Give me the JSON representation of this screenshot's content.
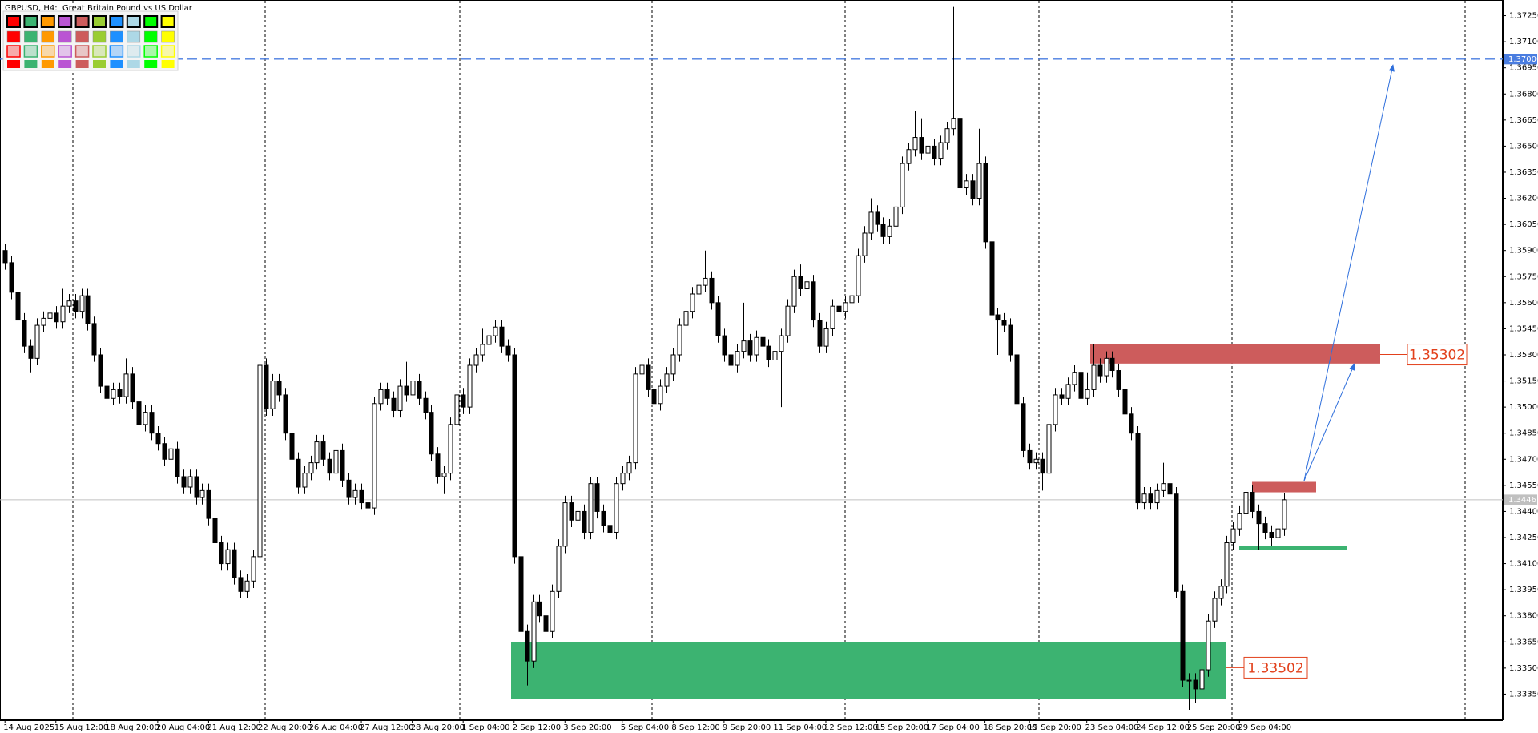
{
  "chart_data": {
    "type": "candlestick",
    "title": "GBPUSD, H4:  Great Britain Pound vs US Dollar",
    "up_color": "#ffffff",
    "down_color": "#000000",
    "ylim": [
      1.332,
      1.3734
    ],
    "yticks": [
      {
        "value": 1.3725,
        "label": "1.37250"
      },
      {
        "value": 1.371,
        "label": "1.37100"
      },
      {
        "value": 1.3695,
        "label": "1.36950"
      },
      {
        "value": 1.368,
        "label": "1.36800"
      },
      {
        "value": 1.3665,
        "label": "1.36650"
      },
      {
        "value": 1.365,
        "label": "1.36500"
      },
      {
        "value": 1.3635,
        "label": "1.36350"
      },
      {
        "value": 1.362,
        "label": "1.36200"
      },
      {
        "value": 1.3605,
        "label": "1.36050"
      },
      {
        "value": 1.359,
        "label": "1.35900"
      },
      {
        "value": 1.3575,
        "label": "1.35750"
      },
      {
        "value": 1.356,
        "label": "1.35600"
      },
      {
        "value": 1.3545,
        "label": "1.35450"
      },
      {
        "value": 1.353,
        "label": "1.35300"
      },
      {
        "value": 1.3515,
        "label": "1.35150"
      },
      {
        "value": 1.35,
        "label": "1.35000"
      },
      {
        "value": 1.3485,
        "label": "1.34850"
      },
      {
        "value": 1.347,
        "label": "1.34700"
      },
      {
        "value": 1.3455,
        "label": "1.34550"
      },
      {
        "value": 1.344,
        "label": "1.34400"
      },
      {
        "value": 1.3425,
        "label": "1.34250"
      },
      {
        "value": 1.341,
        "label": "1.34100"
      },
      {
        "value": 1.3395,
        "label": "1.33950"
      },
      {
        "value": 1.338,
        "label": "1.33800"
      },
      {
        "value": 1.3365,
        "label": "1.33650"
      },
      {
        "value": 1.335,
        "label": "1.33500"
      },
      {
        "value": 1.3335,
        "label": "1.33350"
      }
    ],
    "price_line": {
      "value": 1.37,
      "label": "1.37000",
      "color": "#4a7de0"
    },
    "current_price": 1.34467,
    "zones": [
      {
        "color": "#3cb371",
        "top": 1.3365,
        "bottom": 1.3332
      },
      {
        "color": "#cd5c5c",
        "top": 1.3536,
        "bottom": 1.3525
      },
      {
        "color": "#cd5c5c",
        "top": 1.3457,
        "bottom": 1.3451
      }
    ],
    "levels": [
      {
        "color": "#3cb371",
        "value": 1.3419
      }
    ],
    "price_labels": [
      1.35302,
      1.33502
    ],
    "price_label_color": "#e2401b",
    "categories": [
      "14 Aug 2025",
      null,
      null,
      null,
      null,
      null,
      null,
      null,
      "15 Aug 12:00",
      null,
      null,
      null,
      null,
      null,
      null,
      null,
      "18 Aug 20:00",
      null,
      null,
      null,
      null,
      null,
      null,
      null,
      "20 Aug 04:00",
      null,
      null,
      null,
      null,
      null,
      null,
      null,
      "21 Aug 12:00",
      null,
      null,
      null,
      null,
      null,
      null,
      null,
      "22 Aug 20:00",
      null,
      null,
      null,
      null,
      null,
      null,
      null,
      "26 Aug 04:00",
      null,
      null,
      null,
      null,
      null,
      null,
      null,
      "27 Aug 12:00",
      null,
      null,
      null,
      null,
      null,
      null,
      null,
      "28 Aug 20:00",
      null,
      null,
      null,
      null,
      null,
      null,
      null,
      "1 Sep 04:00",
      null,
      null,
      null,
      null,
      null,
      null,
      null,
      "2 Sep 12:00",
      null,
      null,
      null,
      null,
      null,
      null,
      null,
      "3 Sep 20:00",
      null,
      null,
      null,
      null,
      null,
      null,
      null,
      null,
      "5 Sep 04:00",
      null,
      null,
      null,
      null,
      null,
      null,
      null,
      "8 Sep 12:00",
      null,
      null,
      null,
      null,
      null,
      null,
      null,
      "9 Sep 20:00",
      null,
      null,
      null,
      null,
      null,
      null,
      null,
      "11 Sep 04:00",
      null,
      null,
      null,
      null,
      null,
      null,
      null,
      "12 Sep 12:00",
      null,
      null,
      null,
      null,
      null,
      null,
      null,
      "15 Sep 20:00",
      null,
      null,
      null,
      null,
      null,
      null,
      null,
      "17 Sep 04:00",
      null,
      null,
      null,
      null,
      null,
      null,
      null,
      null,
      "18 Sep 20:00",
      null,
      null,
      null,
      null,
      null,
      null,
      "19 Sep 20:00",
      null,
      null,
      null,
      null,
      null,
      null,
      null,
      null,
      "23 Sep 04:00",
      null,
      null,
      null,
      null,
      null,
      null,
      null,
      "24 Sep 12:00",
      null,
      null,
      null,
      null,
      null,
      null,
      null,
      "25 Sep 20:00",
      null,
      null,
      null,
      null,
      null,
      null,
      null,
      "29 Sep 04:00",
      null,
      null,
      null,
      null,
      null,
      null,
      null
    ],
    "open": [
      1.359,
      1.3583,
      1.3566,
      1.355,
      1.3535,
      1.3528,
      1.3547,
      1.3551,
      1.3554,
      1.3549,
      1.3558,
      1.3561,
      1.3555,
      1.3564,
      1.3548,
      1.353,
      1.3512,
      1.3505,
      1.351,
      1.3506,
      1.3519,
      1.3503,
      1.349,
      1.3497,
      1.3485,
      1.3479,
      1.347,
      1.3476,
      1.346,
      1.3454,
      1.346,
      1.3448,
      1.3452,
      1.3436,
      1.3422,
      1.341,
      1.3418,
      1.3402,
      1.3394,
      1.34,
      1.3414,
      1.3524,
      1.3499,
      1.3515,
      1.3507,
      1.3485,
      1.347,
      1.3454,
      1.3462,
      1.3468,
      1.348,
      1.347,
      1.3462,
      1.3475,
      1.3458,
      1.3448,
      1.3452,
      1.3445,
      1.3442,
      1.3502,
      1.351,
      1.3505,
      1.3498,
      1.3512,
      1.3507,
      1.3515,
      1.3505,
      1.3497,
      1.3473,
      1.346,
      1.3462,
      1.349,
      1.3507,
      1.35,
      1.3524,
      1.353,
      1.3536,
      1.3541,
      1.3546,
      1.3535,
      1.353,
      1.3414,
      1.3371,
      1.3354,
      1.3388,
      1.338,
      1.3371,
      1.3394,
      1.342,
      1.3445,
      1.3435,
      1.344,
      1.3428,
      1.3456,
      1.344,
      1.3432,
      1.3428,
      1.3456,
      1.3462,
      1.3468,
      1.3519,
      1.3524,
      1.351,
      1.3502,
      1.3512,
      1.3519,
      1.353,
      1.3547,
      1.3555,
      1.3565,
      1.357,
      1.3574,
      1.356,
      1.3541,
      1.353,
      1.3524,
      1.3532,
      1.3538,
      1.353,
      1.354,
      1.3535,
      1.3527,
      1.3532,
      1.3541,
      1.3558,
      1.3575,
      1.3568,
      1.3572,
      1.355,
      1.3535,
      1.3545,
      1.3558,
      1.3555,
      1.356,
      1.3564,
      1.3587,
      1.36,
      1.3612,
      1.3605,
      1.3598,
      1.3604,
      1.3615,
      1.364,
      1.3648,
      1.3655,
      1.3646,
      1.365,
      1.3643,
      1.3652,
      1.366,
      1.3666,
      1.3626,
      1.363,
      1.362,
      1.364,
      1.3595,
      1.3553,
      1.355,
      1.3547,
      1.353,
      1.3502,
      1.3475,
      1.3468,
      1.347,
      1.3462,
      1.349,
      1.3507,
      1.3505,
      1.3513,
      1.352,
      1.3505,
      1.351,
      1.3524,
      1.3518,
      1.3528,
      1.3521,
      1.351,
      1.3496,
      1.3485,
      1.3445,
      1.345,
      1.3445,
      1.3452,
      1.3456,
      1.345,
      1.3394,
      1.3343,
      1.3343,
      1.3338,
      1.3349,
      1.3377,
      1.339,
      1.3397,
      1.3422,
      1.343,
      1.3439,
      1.3451,
      1.344,
      1.3433,
      1.3428,
      1.3425,
      1.343
    ],
    "high": [
      1.3594,
      1.3587,
      1.357,
      1.3554,
      1.3539,
      1.3551,
      1.3555,
      1.356,
      1.3558,
      1.3568,
      1.3565,
      1.3565,
      1.3568,
      1.3568,
      1.3552,
      1.3534,
      1.3516,
      1.3514,
      1.3514,
      1.3528,
      1.3523,
      1.3507,
      1.3501,
      1.3501,
      1.3489,
      1.3483,
      1.348,
      1.348,
      1.3464,
      1.3464,
      1.3464,
      1.3456,
      1.3456,
      1.344,
      1.3426,
      1.3422,
      1.3422,
      1.3406,
      1.3404,
      1.3418,
      1.3534,
      1.3528,
      1.3519,
      1.3519,
      1.3511,
      1.3489,
      1.3474,
      1.3466,
      1.3472,
      1.3484,
      1.3484,
      1.3474,
      1.3479,
      1.3479,
      1.3462,
      1.3456,
      1.3456,
      1.3449,
      1.3506,
      1.3514,
      1.3514,
      1.3509,
      1.3516,
      1.3526,
      1.3519,
      1.3519,
      1.3509,
      1.3501,
      1.3477,
      1.3466,
      1.3494,
      1.3511,
      1.3511,
      1.3528,
      1.3534,
      1.3545,
      1.3547,
      1.355,
      1.355,
      1.3539,
      1.3534,
      1.3418,
      1.3375,
      1.3392,
      1.3392,
      1.3384,
      1.3398,
      1.3424,
      1.3449,
      1.3449,
      1.3444,
      1.3444,
      1.346,
      1.346,
      1.3444,
      1.3436,
      1.346,
      1.3466,
      1.3472,
      1.3523,
      1.355,
      1.3528,
      1.3514,
      1.3516,
      1.3523,
      1.3534,
      1.3551,
      1.3559,
      1.3569,
      1.3574,
      1.359,
      1.3578,
      1.3564,
      1.3545,
      1.3534,
      1.3536,
      1.356,
      1.3542,
      1.3544,
      1.3544,
      1.3539,
      1.3536,
      1.3545,
      1.3562,
      1.3579,
      1.3582,
      1.3576,
      1.3576,
      1.3554,
      1.3549,
      1.3562,
      1.3562,
      1.3564,
      1.3568,
      1.3591,
      1.3604,
      1.362,
      1.3616,
      1.3609,
      1.3608,
      1.3619,
      1.3644,
      1.3652,
      1.367,
      1.3666,
      1.3654,
      1.3654,
      1.3656,
      1.3664,
      1.373,
      1.367,
      1.3634,
      1.3634,
      1.366,
      1.3644,
      1.3599,
      1.3557,
      1.3554,
      1.3551,
      1.3534,
      1.3506,
      1.3479,
      1.3474,
      1.3474,
      1.3494,
      1.3511,
      1.3511,
      1.3517,
      1.3524,
      1.3524,
      1.352,
      1.3536,
      1.3528,
      1.3532,
      1.3532,
      1.3525,
      1.3514,
      1.35,
      1.3489,
      1.3454,
      1.3454,
      1.3456,
      1.3468,
      1.346,
      1.3454,
      1.3398,
      1.3347,
      1.3347,
      1.3353,
      1.3381,
      1.3394,
      1.3401,
      1.3426,
      1.3434,
      1.3443,
      1.3455,
      1.3455,
      1.3444,
      1.3437,
      1.3432,
      1.3434,
      1.34507
    ],
    "low": [
      1.3579,
      1.3562,
      1.3546,
      1.3531,
      1.352,
      1.3524,
      1.3543,
      1.3547,
      1.3545,
      1.3545,
      1.3554,
      1.3551,
      1.3551,
      1.3544,
      1.3526,
      1.3508,
      1.3501,
      1.3501,
      1.3502,
      1.3502,
      1.3499,
      1.3486,
      1.3486,
      1.3481,
      1.3475,
      1.3466,
      1.3466,
      1.3456,
      1.345,
      1.345,
      1.3444,
      1.3444,
      1.3432,
      1.3418,
      1.3406,
      1.3406,
      1.3398,
      1.339,
      1.339,
      1.3396,
      1.341,
      1.3495,
      1.3495,
      1.3503,
      1.3481,
      1.3466,
      1.345,
      1.345,
      1.3458,
      1.3464,
      1.3466,
      1.3458,
      1.3458,
      1.3454,
      1.3444,
      1.3444,
      1.3441,
      1.3416,
      1.3438,
      1.3498,
      1.3501,
      1.3494,
      1.3494,
      1.3503,
      1.3503,
      1.3501,
      1.3493,
      1.3469,
      1.3456,
      1.345,
      1.3458,
      1.3486,
      1.3496,
      1.3496,
      1.352,
      1.3526,
      1.3532,
      1.3537,
      1.3531,
      1.3526,
      1.341,
      1.335,
      1.334,
      1.335,
      1.3376,
      1.3333,
      1.3367,
      1.339,
      1.3416,
      1.3431,
      1.3431,
      1.3424,
      1.3424,
      1.3436,
      1.3428,
      1.342,
      1.3424,
      1.3452,
      1.3458,
      1.3464,
      1.3515,
      1.3506,
      1.349,
      1.3498,
      1.3508,
      1.3515,
      1.3526,
      1.3543,
      1.3551,
      1.3561,
      1.3566,
      1.3556,
      1.3537,
      1.3526,
      1.3516,
      1.352,
      1.3528,
      1.3526,
      1.3526,
      1.3531,
      1.3523,
      1.3523,
      1.35,
      1.3537,
      1.3554,
      1.3564,
      1.3564,
      1.3546,
      1.3531,
      1.3531,
      1.3541,
      1.3551,
      1.3551,
      1.3556,
      1.356,
      1.3583,
      1.3596,
      1.3601,
      1.3594,
      1.3594,
      1.36,
      1.3611,
      1.3636,
      1.3644,
      1.3642,
      1.3642,
      1.3639,
      1.3639,
      1.3648,
      1.3656,
      1.3622,
      1.3622,
      1.3616,
      1.3616,
      1.3591,
      1.3549,
      1.353,
      1.3543,
      1.3526,
      1.3498,
      1.3471,
      1.3464,
      1.3464,
      1.3452,
      1.3458,
      1.3486,
      1.3501,
      1.3501,
      1.3509,
      1.349,
      1.3501,
      1.3506,
      1.3514,
      1.3514,
      1.3517,
      1.3506,
      1.3492,
      1.3481,
      1.3441,
      1.3441,
      1.3441,
      1.3441,
      1.3448,
      1.3446,
      1.339,
      1.3339,
      1.3326,
      1.333,
      1.3334,
      1.3345,
      1.3373,
      1.3386,
      1.3393,
      1.3418,
      1.3426,
      1.3435,
      1.3436,
      1.3418,
      1.3424,
      1.342,
      1.3421,
      1.3426
    ],
    "close": [
      1.3583,
      1.3566,
      1.355,
      1.3535,
      1.3528,
      1.3547,
      1.3551,
      1.3554,
      1.3549,
      1.3558,
      1.3561,
      1.3555,
      1.3564,
      1.3548,
      1.353,
      1.3512,
      1.3505,
      1.351,
      1.3506,
      1.3519,
      1.3503,
      1.349,
      1.3497,
      1.3485,
      1.3479,
      1.347,
      1.3476,
      1.346,
      1.3454,
      1.346,
      1.3448,
      1.3452,
      1.3436,
      1.3422,
      1.341,
      1.3418,
      1.3402,
      1.3394,
      1.34,
      1.3414,
      1.3524,
      1.3499,
      1.3515,
      1.3507,
      1.3485,
      1.347,
      1.3454,
      1.3462,
      1.3468,
      1.348,
      1.347,
      1.3462,
      1.3475,
      1.3458,
      1.3448,
      1.3452,
      1.3445,
      1.3442,
      1.3502,
      1.351,
      1.3505,
      1.3498,
      1.3512,
      1.3507,
      1.3515,
      1.3505,
      1.3497,
      1.3473,
      1.346,
      1.3462,
      1.349,
      1.3507,
      1.35,
      1.3524,
      1.353,
      1.3536,
      1.3541,
      1.3546,
      1.3535,
      1.353,
      1.3414,
      1.3371,
      1.3354,
      1.3388,
      1.338,
      1.3371,
      1.3394,
      1.342,
      1.3445,
      1.3435,
      1.344,
      1.3428,
      1.3456,
      1.344,
      1.3432,
      1.3428,
      1.3456,
      1.3462,
      1.3468,
      1.3519,
      1.3524,
      1.351,
      1.3502,
      1.3512,
      1.3519,
      1.353,
      1.3547,
      1.3555,
      1.3565,
      1.357,
      1.3574,
      1.356,
      1.3541,
      1.353,
      1.3524,
      1.3532,
      1.3538,
      1.353,
      1.354,
      1.3535,
      1.3527,
      1.3532,
      1.3541,
      1.3558,
      1.3575,
      1.3568,
      1.3572,
      1.355,
      1.3535,
      1.3545,
      1.3558,
      1.3555,
      1.356,
      1.3564,
      1.3587,
      1.36,
      1.3612,
      1.3605,
      1.3598,
      1.3604,
      1.3615,
      1.364,
      1.3648,
      1.3655,
      1.3646,
      1.365,
      1.3643,
      1.3652,
      1.366,
      1.3666,
      1.3626,
      1.363,
      1.362,
      1.364,
      1.3595,
      1.3553,
      1.355,
      1.3547,
      1.353,
      1.3502,
      1.3475,
      1.3468,
      1.347,
      1.3462,
      1.349,
      1.3507,
      1.3505,
      1.3513,
      1.352,
      1.3505,
      1.351,
      1.3524,
      1.3518,
      1.3528,
      1.3521,
      1.351,
      1.3496,
      1.3485,
      1.3445,
      1.345,
      1.3445,
      1.3452,
      1.3456,
      1.345,
      1.3394,
      1.3343,
      1.3343,
      1.3338,
      1.3349,
      1.3377,
      1.339,
      1.3397,
      1.3422,
      1.343,
      1.3439,
      1.3451,
      1.344,
      1.3433,
      1.3428,
      1.3425,
      1.343,
      1.34467
    ]
  }
}
